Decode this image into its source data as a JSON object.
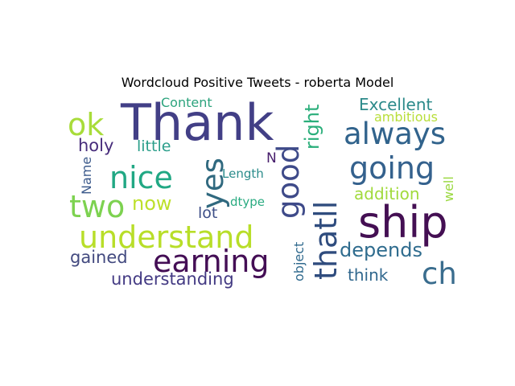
{
  "title": "Wordcloud Positive Tweets - roberta Model",
  "words": [
    {
      "text": "Thank",
      "color": "#423f86"
    },
    {
      "text": "ok",
      "color": "#a8dc3a"
    },
    {
      "text": "Content",
      "color": "#2ca37d"
    },
    {
      "text": "holy",
      "color": "#472c7b"
    },
    {
      "text": "little",
      "color": "#2a9e8a"
    },
    {
      "text": "nice",
      "color": "#21a884"
    },
    {
      "text": "two",
      "color": "#7dd250"
    },
    {
      "text": "now",
      "color": "#bde02b"
    },
    {
      "text": "understand",
      "color": "#b8de29"
    },
    {
      "text": "earning",
      "color": "#440e55"
    },
    {
      "text": "gained",
      "color": "#42497f"
    },
    {
      "text": "understanding",
      "color": "#433a83"
    },
    {
      "text": "yes",
      "color": "#30697f"
    },
    {
      "text": "Name",
      "color": "#3d5b8c"
    },
    {
      "text": "Length",
      "color": "#2a8c8b"
    },
    {
      "text": "lot",
      "color": "#3c4e87"
    },
    {
      "text": "dtype",
      "color": "#2aab81"
    },
    {
      "text": "N",
      "color": "#471e6c"
    },
    {
      "text": "good",
      "color": "#3e4a89"
    },
    {
      "text": "right",
      "color": "#2aae7a"
    },
    {
      "text": "thatll",
      "color": "#2f4c7e"
    },
    {
      "text": "object",
      "color": "#306a8e"
    },
    {
      "text": "Excellent",
      "color": "#2c8a8a"
    },
    {
      "text": "ambitious",
      "color": "#b8de3a"
    },
    {
      "text": "always",
      "color": "#31638c"
    },
    {
      "text": "going",
      "color": "#34618d"
    },
    {
      "text": "addition",
      "color": "#a1da3c"
    },
    {
      "text": "well",
      "color": "#9ad840"
    },
    {
      "text": "ship",
      "color": "#440f53"
    },
    {
      "text": "depends",
      "color": "#2f6c8e"
    },
    {
      "text": "think",
      "color": "#31688e"
    },
    {
      "text": "ch",
      "color": "#3a6d8e"
    }
  ]
}
